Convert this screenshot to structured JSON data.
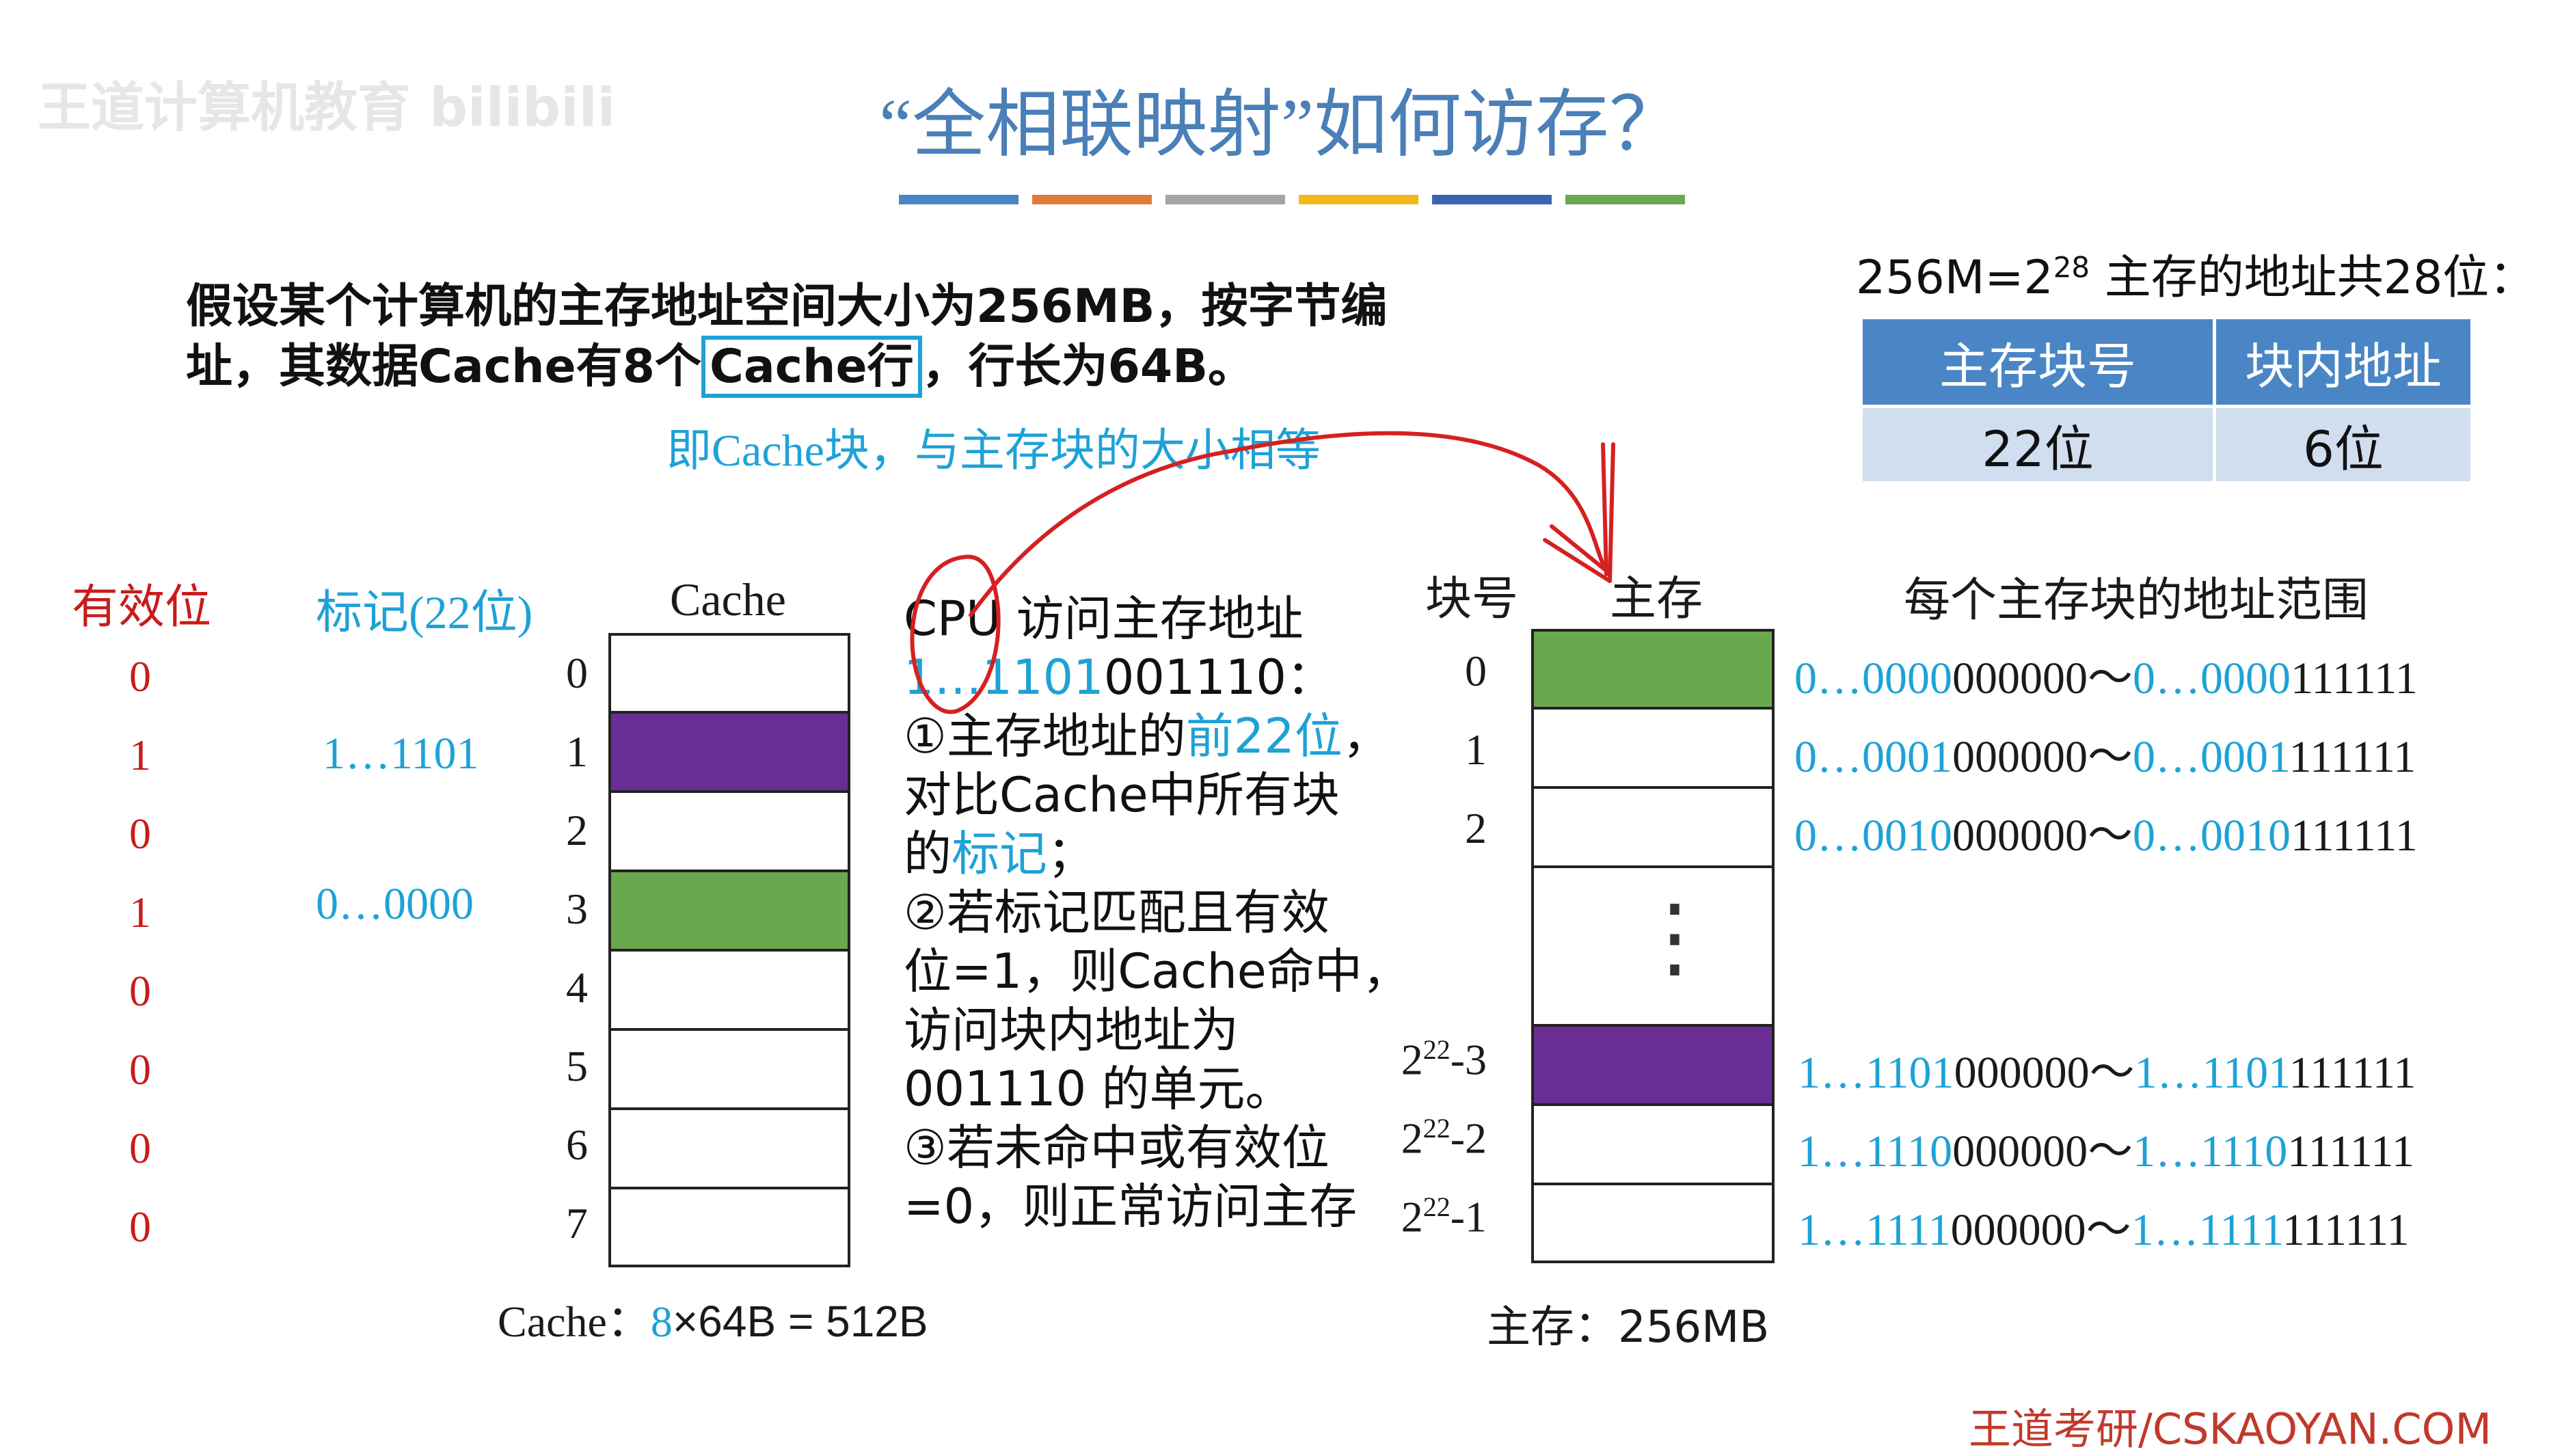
{
  "watermark": "王道计算机教育 bilibili",
  "title": "“全相联映射”如何访存？",
  "bar_colors": [
    "#4a86c5",
    "#e07b39",
    "#a5a5a5",
    "#f2b81f",
    "#3b64b0",
    "#6aa84f"
  ],
  "intro": {
    "line1": "假设某个计算机的主存地址空间大小为256MB，按字节编",
    "line2_pre": "址，其数据Cache有8个",
    "line2_box": "Cache行",
    "line2_post": "，行长为64B。",
    "note": "即Cache块，与主存块的大小相等"
  },
  "addr_info": {
    "formula_pre": "256M=2",
    "formula_exp": "28",
    "formula_post": " 主存的地址共28位：",
    "headers": [
      "主存块号",
      "块内地址"
    ],
    "values": [
      "22位",
      "6位"
    ]
  },
  "cache_table": {
    "valid_header": "有效位",
    "tag_header": "标记(22位)",
    "cache_header": "Cache",
    "valid_bits": [
      "0",
      "1",
      "0",
      "1",
      "0",
      "0",
      "0",
      "0"
    ],
    "tags": [
      "",
      "1…1101",
      "",
      "0…0000",
      "",
      "",
      "",
      ""
    ],
    "indices": [
      "0",
      "1",
      "2",
      "3",
      "4",
      "5",
      "6",
      "7"
    ],
    "size_pre": "Cache：",
    "size_num": "8",
    "size_post": "×64B = 512B"
  },
  "steps": {
    "line1": "CPU 访问主存地址",
    "addr_blue": "1…1101",
    "addr_black": "001110：",
    "s1_pre": "①主存地址的",
    "s1_blue": "前22位",
    "s1_post": "，",
    "s1_line2": "对比Cache中所有块",
    "s1_line3_pre": "的",
    "s1_line3_blue": "标记",
    "s1_line3_post": "；",
    "s2_line1": "②若标记匹配且有效",
    "s2_line2": "位=1，则Cache命中，",
    "s2_line3": "访问块内地址为",
    "s2_line4": "001110 的单元。",
    "s3_line1": "③若未命中或有效位",
    "s3_line2": "=0，则正常访问主存"
  },
  "memory": {
    "block_header": "块号",
    "mem_header": "主存",
    "range_header": "每个主存块的地址范围",
    "labels": [
      "0",
      "1",
      "2",
      "2^22-3",
      "2^22-2",
      "2^22-1"
    ],
    "label_base": "2",
    "label_exp": "22",
    "label_suffixes": [
      "-3",
      "-2",
      "-1"
    ],
    "dots": "⋮",
    "ranges": [
      {
        "a_blue": "0…0000",
        "a_black": "000000～",
        "b_blue": "0…0000",
        "b_black": "111111"
      },
      {
        "a_blue": "0…0001",
        "a_black": "000000～",
        "b_blue": "0…0001",
        "b_black": "111111"
      },
      {
        "a_blue": "0…0010",
        "a_black": "000000～",
        "b_blue": "0…0010",
        "b_black": "111111"
      },
      {
        "a_blue": "1…1101",
        "a_black": "000000～",
        "b_blue": "1…1101",
        "b_black": "111111"
      },
      {
        "a_blue": "1…1110",
        "a_black": "000000～",
        "b_blue": "1…1110",
        "b_black": "111111"
      },
      {
        "a_blue": "1…1111",
        "a_black": "000000～",
        "b_blue": "1…1111",
        "b_black": "111111"
      }
    ],
    "size_label": "主存：256MB"
  },
  "footer": "王道考研/CSKAOYAN.COM",
  "colors": {
    "title": "#4a7fb8",
    "accent_blue": "#1ea2d6",
    "red": "#c91b1b",
    "purple": "#6a2d93",
    "green": "#6aa84f"
  }
}
